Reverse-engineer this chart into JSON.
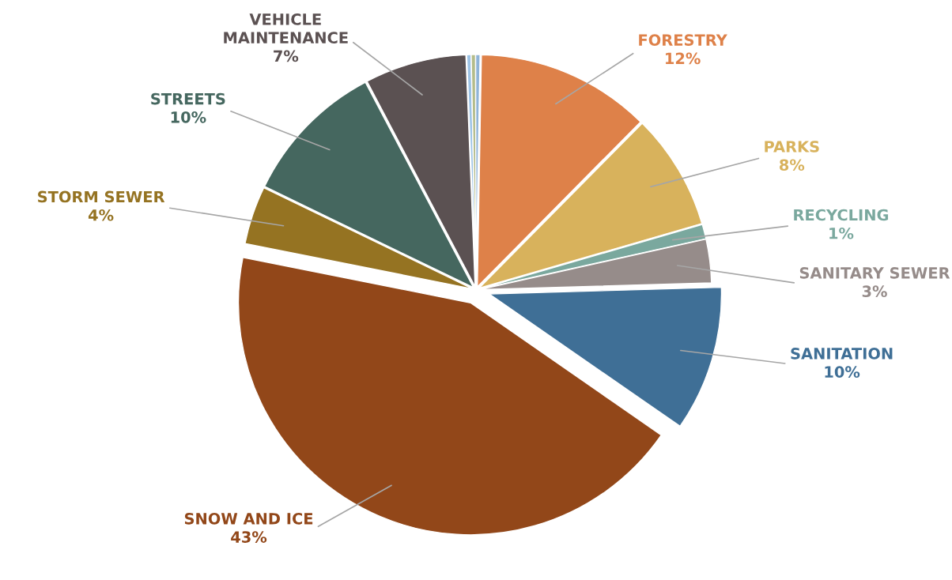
{
  "chart_data": {
    "type": "pie",
    "categories": [
      "FORESTRY",
      "PARKS",
      "RECYCLING",
      "SANITARY SEWER",
      "SANITATION",
      "SNOW AND ICE",
      "STORM SEWER",
      "STREETS",
      "VEHICLE MAINTENANCE",
      null,
      null,
      null
    ],
    "values": [
      12,
      8,
      1,
      3,
      10,
      43,
      4,
      10,
      7,
      0.3,
      0.3,
      0.3
    ],
    "value_labels": [
      "12%",
      "8%",
      "1%",
      "3%",
      "10%",
      "43%",
      "4%",
      "10%",
      "7%",
      null,
      null,
      null
    ],
    "colors": [
      "#de8149",
      "#d8b25c",
      "#7aa89e",
      "#968c8a",
      "#3f6f96",
      "#924719",
      "#957322",
      "#45675f",
      "#5b5152",
      "#9dc3e6",
      "#b4bc8a",
      "#8fb4d8"
    ],
    "legend": false
  }
}
